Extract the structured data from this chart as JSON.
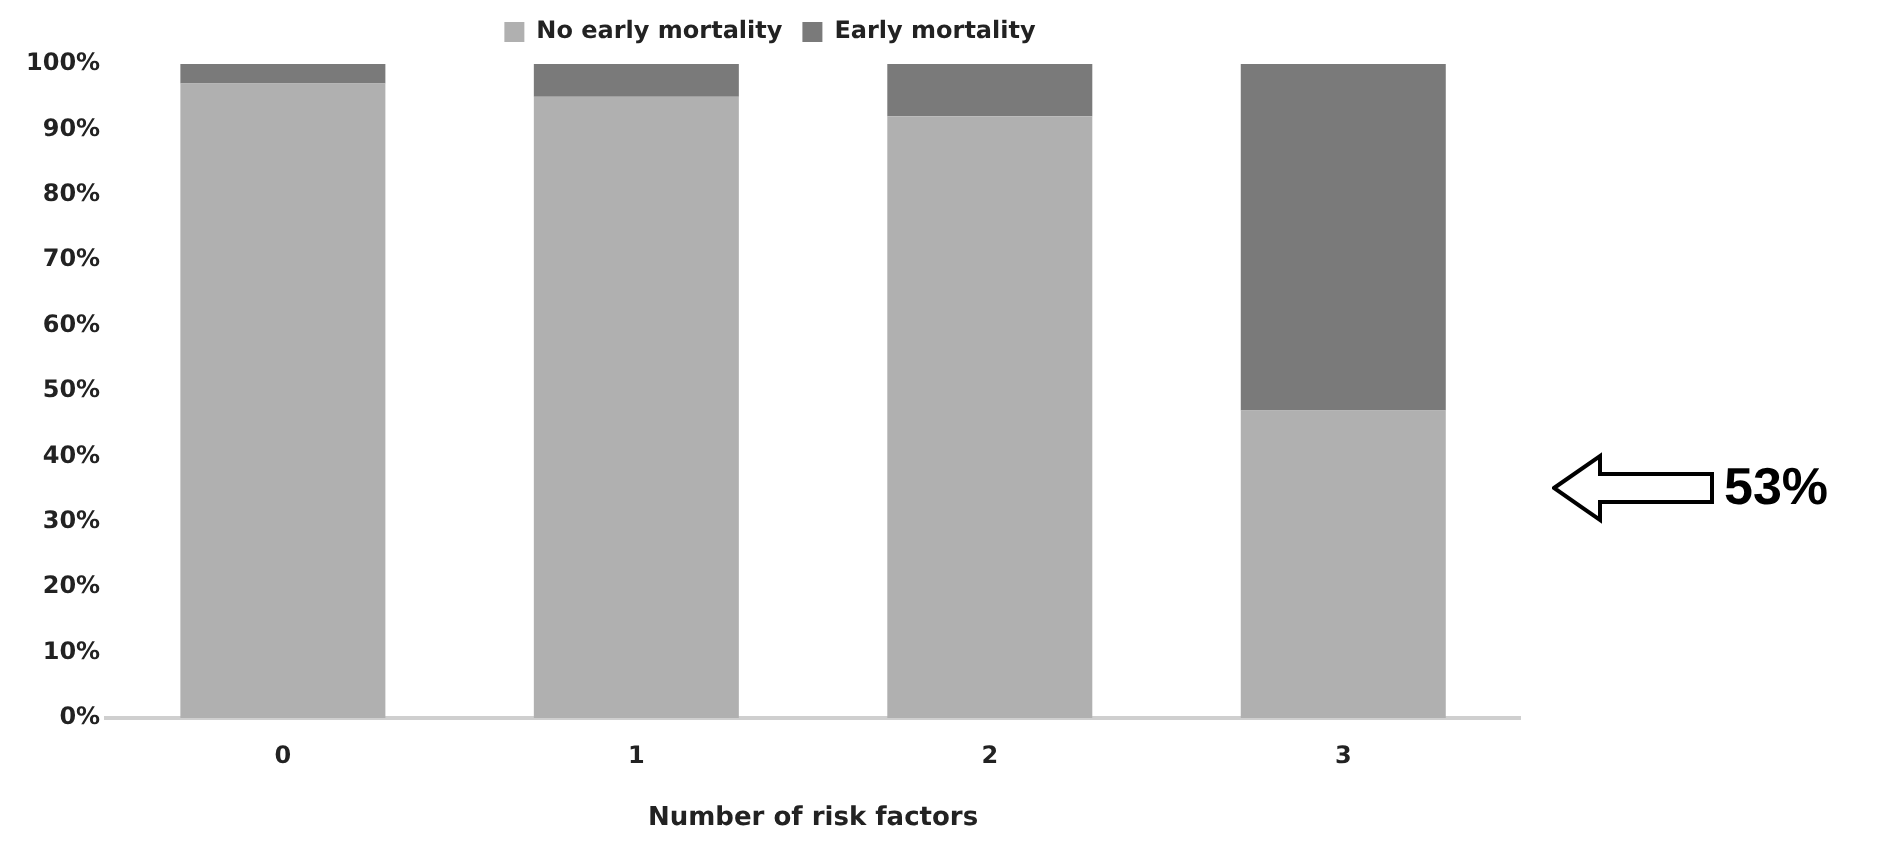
{
  "chart_data": {
    "type": "bar",
    "stacked": true,
    "xlabel": "Number of risk factors",
    "categories": [
      "0",
      "1",
      "2",
      "3"
    ],
    "series": [
      {
        "name": "No early mortality",
        "color": "#b0b0b0",
        "values": [
          97,
          95,
          92,
          47
        ]
      },
      {
        "name": "Early mortality",
        "color": "#7a7a7a",
        "values": [
          3,
          5,
          8,
          53
        ]
      }
    ],
    "ylim": [
      0,
      100
    ],
    "yticks": [
      {
        "value": 0,
        "label": "0%"
      },
      {
        "value": 10,
        "label": "10%"
      },
      {
        "value": 20,
        "label": "20%"
      },
      {
        "value": 30,
        "label": "30%"
      },
      {
        "value": 40,
        "label": "40%"
      },
      {
        "value": 50,
        "label": "50%"
      },
      {
        "value": 60,
        "label": "60%"
      },
      {
        "value": 70,
        "label": "70%"
      },
      {
        "value": 80,
        "label": "80%"
      },
      {
        "value": 90,
        "label": "90%"
      },
      {
        "value": 100,
        "label": "100%"
      }
    ],
    "grid": false,
    "legend": "top",
    "annotations": [
      "53%"
    ]
  }
}
